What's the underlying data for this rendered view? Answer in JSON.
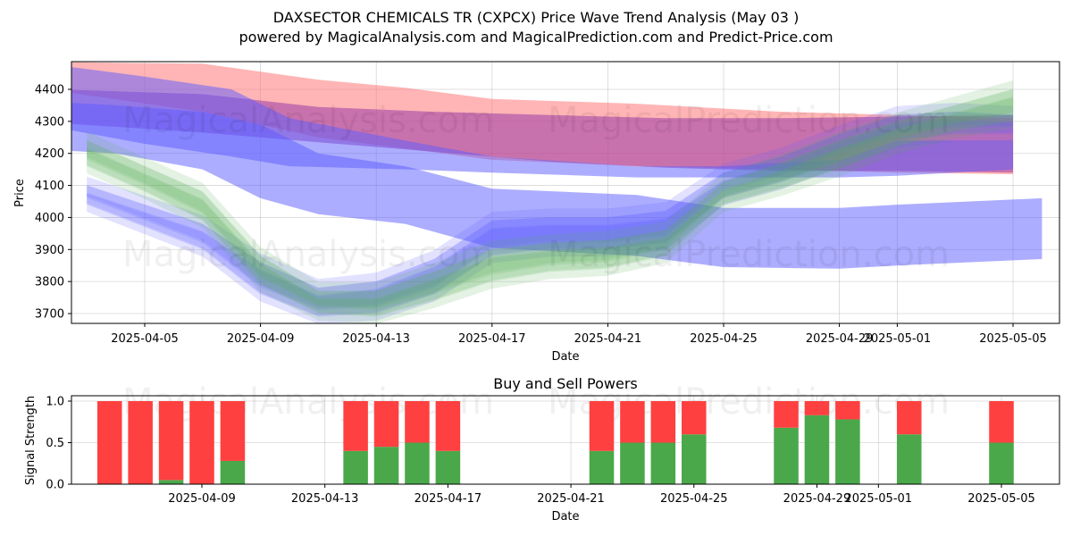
{
  "title_line1": "DAXSECTOR CHEMICALS TR (CXPCX) Price Wave Trend Analysis (May 03 )",
  "title_line2": "powered by MagicalAnalysis.com and MagicalPrediction.com and Predict-Price.com",
  "watermarks": [
    "MagicalAnalysis.com",
    "MagicalPrediction.com"
  ],
  "colors": {
    "red_band": "#ff6b6b",
    "blue_band": "#5c5cff",
    "green_band": "#55b055",
    "purple_band": "#9b3aa6",
    "buy": "#4aa84a",
    "sell": "#ff4040"
  },
  "chart_data": [
    {
      "type": "area",
      "title": "",
      "xlabel": "Date",
      "ylabel": "Price",
      "x_ticks": [
        "2025-04-05",
        "2025-04-09",
        "2025-04-13",
        "2025-04-17",
        "2025-04-21",
        "2025-04-25",
        "2025-04-29",
        "2025-05-01",
        "2025-05-05"
      ],
      "y_ticks": [
        3700,
        3800,
        3900,
        4000,
        4100,
        4200,
        4300,
        4400
      ],
      "xlim": [
        "2025-04-02",
        "2025-05-06"
      ],
      "ylim": [
        3665,
        4485
      ],
      "grid": true,
      "series": [
        {
          "color": "red",
          "x": [
            "2025-04-02",
            "2025-04-07",
            "2025-04-11",
            "2025-04-14",
            "2025-04-17",
            "2025-04-22",
            "2025-04-27",
            "2025-05-01",
            "2025-05-05"
          ],
          "upper": [
            4485,
            4480,
            4430,
            4405,
            4370,
            4355,
            4330,
            4320,
            4310
          ],
          "lower": [
            4395,
            4330,
            4250,
            4215,
            4180,
            4160,
            4150,
            4140,
            4135
          ]
        },
        {
          "color": "purple",
          "x": [
            "2025-04-02",
            "2025-04-07",
            "2025-04-11",
            "2025-04-15",
            "2025-04-19",
            "2025-04-23",
            "2025-04-27",
            "2025-05-01",
            "2025-05-05"
          ],
          "upper": [
            4400,
            4385,
            4345,
            4330,
            4320,
            4310,
            4310,
            4315,
            4320
          ],
          "lower": [
            4295,
            4265,
            4235,
            4205,
            4175,
            4155,
            4145,
            4145,
            4140
          ]
        },
        {
          "color": "blue",
          "x": [
            "2025-04-02",
            "2025-04-05",
            "2025-04-08",
            "2025-04-10",
            "2025-04-14",
            "2025-04-17",
            "2025-04-22",
            "2025-04-25",
            "2025-04-29",
            "2025-05-01",
            "2025-05-05"
          ],
          "upper": [
            4475,
            4440,
            4400,
            4310,
            4240,
            4190,
            4160,
            4160,
            4180,
            4240,
            4240
          ],
          "lower": [
            4280,
            4230,
            4190,
            4160,
            4150,
            4140,
            4125,
            4125,
            4125,
            4130,
            4150
          ]
        },
        {
          "color": "blue",
          "x": [
            "2025-04-02",
            "2025-04-04",
            "2025-04-07",
            "2025-04-09",
            "2025-04-11",
            "2025-04-14",
            "2025-04-17",
            "2025-04-22",
            "2025-04-25",
            "2025-04-29",
            "2025-05-01",
            "2025-05-06"
          ],
          "upper": [
            4360,
            4350,
            4330,
            4290,
            4200,
            4160,
            4090,
            4070,
            4030,
            4030,
            4040,
            4060
          ],
          "lower": [
            4210,
            4200,
            4150,
            4060,
            4010,
            3980,
            3905,
            3880,
            3845,
            3840,
            3850,
            3870
          ]
        },
        {
          "color": "blue",
          "x": [
            "2025-04-03",
            "2025-04-05",
            "2025-04-07",
            "2025-04-09",
            "2025-04-11",
            "2025-04-13",
            "2025-04-15",
            "2025-04-17",
            "2025-04-19",
            "2025-04-21",
            "2025-04-23",
            "2025-04-25",
            "2025-04-27",
            "2025-04-29",
            "2025-05-01",
            "2025-05-03",
            "2025-05-05"
          ],
          "upper": [
            4100,
            4040,
            3980,
            3860,
            3780,
            3800,
            3870,
            3990,
            4000,
            4000,
            4020,
            4140,
            4190,
            4260,
            4320,
            4330,
            4320
          ],
          "lower": [
            4040,
            3970,
            3900,
            3760,
            3690,
            3700,
            3760,
            3880,
            3900,
            3900,
            3920,
            4060,
            4110,
            4180,
            4240,
            4260,
            4260
          ]
        },
        {
          "color": "green",
          "x": [
            "2025-04-03",
            "2025-04-05",
            "2025-04-07",
            "2025-04-09",
            "2025-04-11",
            "2025-04-13",
            "2025-04-15",
            "2025-04-17",
            "2025-04-19",
            "2025-04-21",
            "2025-04-23",
            "2025-04-25",
            "2025-04-27",
            "2025-04-29",
            "2025-05-01",
            "2025-05-03",
            "2025-05-05"
          ],
          "upper": [
            4240,
            4160,
            4080,
            3880,
            3770,
            3770,
            3830,
            3900,
            3920,
            3930,
            3960,
            4110,
            4170,
            4240,
            4300,
            4350,
            4400
          ],
          "lower": [
            4160,
            4080,
            3990,
            3790,
            3700,
            3690,
            3740,
            3800,
            3830,
            3840,
            3880,
            4040,
            4090,
            4150,
            4220,
            4270,
            4300
          ]
        }
      ]
    },
    {
      "type": "bar",
      "title": "Buy and Sell Powers",
      "xlabel": "Date",
      "ylabel": "Signal Strength",
      "x_ticks": [
        "2025-04-09",
        "2025-04-13",
        "2025-04-17",
        "2025-04-21",
        "2025-04-25",
        "2025-04-29",
        "2025-05-01",
        "2025-05-05"
      ],
      "y_ticks": [
        "0.0",
        "0.5",
        "1.0"
      ],
      "ylim": [
        0,
        1.05
      ],
      "grid": true,
      "categories": [
        "2025-04-06",
        "2025-04-07",
        "2025-04-08",
        "2025-04-09",
        "2025-04-10",
        "2025-04-14",
        "2025-04-15",
        "2025-04-16",
        "2025-04-17",
        "2025-04-22",
        "2025-04-23",
        "2025-04-24",
        "2025-04-25",
        "2025-04-28",
        "2025-04-29",
        "2025-04-30",
        "2025-05-02",
        "2025-05-05"
      ],
      "series": [
        {
          "name": "Buy",
          "values": [
            0,
            0,
            0.05,
            0,
            0.28,
            0.4,
            0.45,
            0.5,
            0.4,
            0.4,
            0.5,
            0.5,
            0.6,
            0.68,
            0.83,
            0.78,
            0.6,
            0.5
          ]
        },
        {
          "name": "Sell",
          "values": [
            1,
            1,
            0.95,
            1,
            0.72,
            0.6,
            0.55,
            0.5,
            0.6,
            0.6,
            0.5,
            0.5,
            0.4,
            0.32,
            0.17,
            0.22,
            0.4,
            0.5
          ]
        }
      ]
    }
  ]
}
